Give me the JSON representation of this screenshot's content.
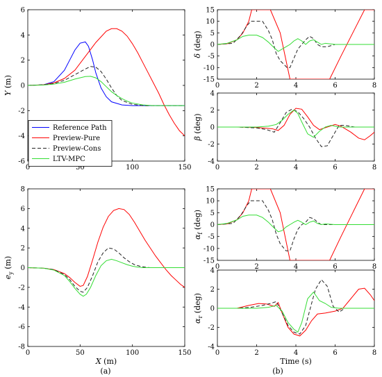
{
  "colors": {
    "reference": "#0000ff",
    "pure": "#ff0000",
    "cons": "#222222",
    "mpc": "#33dd33"
  },
  "captions": {
    "left": "(a)",
    "right": "(b)"
  },
  "chart_data": [
    {
      "id": "y",
      "type": "line",
      "xlabel": "",
      "ylabel": "Y (m)",
      "xlim": [
        0,
        150
      ],
      "ylim": [
        -6,
        6
      ],
      "xticks": [
        0,
        50,
        100,
        150
      ],
      "yticks": [
        -6,
        -4,
        -2,
        0,
        2,
        4,
        6
      ],
      "legend": {
        "placement": "bottom-left",
        "entries": [
          "Reference Path",
          "Preview-Pure",
          "Preview-Cons",
          "LTV-MPC"
        ]
      },
      "series": [
        {
          "name": "Reference Path",
          "key": "reference",
          "x": [
            0,
            15,
            25,
            35,
            40,
            45,
            50,
            55,
            58,
            62,
            65,
            70,
            75,
            80,
            90,
            100,
            110,
            120,
            130,
            140,
            150
          ],
          "y": [
            0,
            0.05,
            0.3,
            1.2,
            2,
            2.8,
            3.35,
            3.45,
            3.1,
            2.0,
            1.0,
            -0.2,
            -0.9,
            -1.3,
            -1.55,
            -1.6,
            -1.6,
            -1.6,
            -1.6,
            -1.6,
            -1.6
          ]
        },
        {
          "name": "Preview-Pure",
          "key": "pure",
          "x": [
            0,
            15,
            25,
            35,
            45,
            55,
            65,
            75,
            80,
            85,
            90,
            95,
            100,
            105,
            110,
            115,
            120,
            125,
            130,
            135,
            140,
            145,
            150
          ],
          "y": [
            0,
            0.05,
            0.2,
            0.55,
            1.2,
            2.3,
            3.4,
            4.3,
            4.5,
            4.5,
            4.3,
            3.9,
            3.3,
            2.6,
            1.8,
            1.0,
            0.2,
            -0.6,
            -1.5,
            -2.3,
            -3.0,
            -3.6,
            -4.0
          ]
        },
        {
          "name": "Preview-Cons",
          "key": "cons",
          "x": [
            0,
            15,
            25,
            35,
            45,
            55,
            60,
            65,
            70,
            75,
            80,
            85,
            90,
            100,
            110,
            120,
            130,
            140,
            150
          ],
          "y": [
            0,
            0.05,
            0.15,
            0.4,
            0.85,
            1.3,
            1.5,
            1.45,
            1.1,
            0.5,
            -0.2,
            -0.8,
            -1.2,
            -1.5,
            -1.6,
            -1.6,
            -1.6,
            -1.6,
            -1.6
          ]
        },
        {
          "name": "LTV-MPC",
          "key": "mpc",
          "x": [
            0,
            15,
            25,
            35,
            45,
            55,
            60,
            65,
            70,
            75,
            80,
            85,
            90,
            95,
            100,
            110,
            120,
            130,
            140,
            150
          ],
          "y": [
            0,
            0.03,
            0.1,
            0.25,
            0.5,
            0.7,
            0.72,
            0.6,
            0.3,
            -0.1,
            -0.5,
            -0.8,
            -1.05,
            -1.25,
            -1.4,
            -1.55,
            -1.6,
            -1.6,
            -1.6,
            -1.6
          ]
        }
      ]
    },
    {
      "id": "ey",
      "type": "line",
      "xlabel": "X (m)",
      "ylabel": "e_y (m)",
      "xlim": [
        0,
        150
      ],
      "ylim": [
        -8,
        8
      ],
      "xticks": [
        0,
        50,
        100,
        150
      ],
      "yticks": [
        -8,
        -6,
        -4,
        -2,
        0,
        2,
        4,
        6,
        8
      ],
      "series": [
        {
          "name": "Preview-Pure",
          "key": "pure",
          "x": [
            0,
            15,
            25,
            35,
            40,
            45,
            50,
            53,
            57,
            62,
            67,
            72,
            77,
            82,
            87,
            92,
            97,
            102,
            107,
            112,
            117,
            122,
            127,
            132,
            137,
            142,
            146,
            150
          ],
          "y": [
            0,
            -0.05,
            -0.2,
            -0.6,
            -1.0,
            -1.5,
            -1.9,
            -1.8,
            -0.9,
            0.8,
            2.6,
            4.1,
            5.2,
            5.8,
            6.0,
            5.9,
            5.4,
            4.6,
            3.7,
            2.8,
            2.0,
            1.2,
            0.5,
            -0.2,
            -0.8,
            -1.3,
            -1.7,
            -2.0
          ]
        },
        {
          "name": "Preview-Cons",
          "key": "cons",
          "x": [
            0,
            15,
            25,
            35,
            40,
            45,
            50,
            53,
            57,
            62,
            67,
            72,
            77,
            82,
            87,
            92,
            97,
            102,
            107,
            112,
            117,
            122,
            130,
            140,
            150
          ],
          "y": [
            0,
            -0.05,
            -0.2,
            -0.7,
            -1.2,
            -1.9,
            -2.4,
            -2.5,
            -2.0,
            -0.8,
            0.6,
            1.5,
            2.0,
            1.9,
            1.5,
            1.0,
            0.6,
            0.3,
            0.15,
            0.05,
            0,
            0,
            0,
            0,
            0
          ]
        },
        {
          "name": "LTV-MPC",
          "key": "mpc",
          "x": [
            0,
            15,
            25,
            35,
            40,
            45,
            50,
            53,
            56,
            60,
            65,
            70,
            75,
            80,
            85,
            90,
            95,
            100,
            105,
            110,
            120,
            130,
            140,
            150
          ],
          "y": [
            0,
            -0.05,
            -0.25,
            -0.8,
            -1.4,
            -2.1,
            -2.7,
            -2.9,
            -2.7,
            -2.0,
            -0.8,
            0.2,
            0.7,
            0.85,
            0.7,
            0.5,
            0.3,
            0.15,
            0.05,
            0,
            0,
            0,
            0,
            0
          ]
        }
      ]
    },
    {
      "id": "delta",
      "type": "line",
      "xlabel": "",
      "ylabel": "δ (deg)",
      "xlim": [
        0,
        8
      ],
      "ylim": [
        -15,
        15
      ],
      "xticks": [
        0,
        2,
        4,
        6,
        8
      ],
      "yticks": [
        -15,
        -10,
        -5,
        0,
        5,
        10,
        15
      ],
      "series": [
        {
          "name": "Preview-Pure",
          "key": "pure",
          "x": [
            0,
            0.5,
            1.0,
            1.3,
            1.6,
            1.75,
            2.2,
            2.7,
            3.2,
            3.7,
            3.72,
            5.7,
            5.72,
            6.3,
            6.9,
            7.5,
            8.0
          ],
          "y": [
            0,
            0.3,
            2,
            5,
            10,
            15,
            15,
            15,
            5,
            -15,
            -15,
            -15,
            -15,
            -5,
            5,
            15,
            15
          ]
        },
        {
          "name": "Preview-Cons",
          "key": "cons",
          "x": [
            0,
            0.8,
            1.2,
            1.5,
            1.7,
            2.3,
            2.6,
            2.8,
            3.0,
            3.2,
            3.55,
            3.7,
            3.9,
            4.1,
            4.3,
            4.5,
            4.7,
            4.9,
            5.1,
            5.3,
            5.6,
            6.0,
            6.5,
            8.0
          ],
          "y": [
            0,
            0.5,
            4,
            8,
            10,
            10,
            6,
            2,
            -4,
            -7,
            -10,
            -10,
            -6,
            -2,
            0,
            2,
            3.5,
            2.5,
            0,
            -1,
            -1,
            0,
            0,
            0
          ]
        },
        {
          "name": "LTV-MPC",
          "key": "mpc",
          "x": [
            0,
            0.5,
            1.0,
            1.3,
            1.6,
            2.0,
            2.3,
            2.6,
            2.9,
            3.1,
            3.3,
            3.5,
            3.7,
            3.9,
            4.1,
            4.3,
            4.5,
            4.7,
            4.9,
            5.1,
            5.3,
            5.5,
            6.0,
            6.5,
            8.0
          ],
          "y": [
            0,
            0.5,
            2,
            3.5,
            4,
            4,
            3,
            1,
            -1.5,
            -3,
            -2,
            -1,
            0,
            1.5,
            2.5,
            1.5,
            0,
            1.5,
            2,
            1,
            0,
            0.5,
            0,
            0,
            0
          ]
        }
      ]
    },
    {
      "id": "beta",
      "type": "line",
      "xlabel": "",
      "ylabel": "β (deg)",
      "xlim": [
        0,
        8
      ],
      "ylim": [
        -4,
        4
      ],
      "xticks": [
        0,
        2,
        4,
        6,
        8
      ],
      "yticks": [
        -4,
        -2,
        0,
        2,
        4
      ],
      "series": [
        {
          "name": "Preview-Pure",
          "key": "pure",
          "x": [
            0,
            1.0,
            2.0,
            2.8,
            3.1,
            3.4,
            3.7,
            4.0,
            4.3,
            4.6,
            4.9,
            5.2,
            5.6,
            6.0,
            6.3,
            6.8,
            7.2,
            7.5,
            7.8,
            8.0
          ],
          "y": [
            0,
            0,
            -0.05,
            -0.2,
            -0.4,
            0.2,
            1.5,
            2.2,
            2.1,
            1.2,
            0.2,
            -0.3,
            0,
            0.3,
            0.1,
            -0.6,
            -1.3,
            -1.5,
            -1.0,
            -0.6
          ]
        },
        {
          "name": "Preview-Cons",
          "key": "cons",
          "x": [
            0,
            1.0,
            2.0,
            2.5,
            2.9,
            3.2,
            3.5,
            3.8,
            4.1,
            4.4,
            4.7,
            5.0,
            5.3,
            5.6,
            5.9,
            6.2,
            6.5,
            7.0,
            8.0
          ],
          "y": [
            0,
            0,
            -0.1,
            -0.3,
            -0.6,
            0.5,
            1.7,
            2.1,
            1.8,
            1.0,
            0,
            -1.3,
            -2.3,
            -2.2,
            -1.0,
            0.2,
            0.2,
            0,
            0
          ]
        },
        {
          "name": "LTV-MPC",
          "key": "mpc",
          "x": [
            0,
            1.0,
            2.0,
            2.6,
            3.0,
            3.3,
            3.6,
            3.9,
            4.1,
            4.3,
            4.6,
            4.9,
            5.2,
            5.5,
            5.8,
            6.2,
            7.0,
            8.0
          ],
          "y": [
            0,
            0,
            0,
            0.1,
            0.3,
            0.8,
            1.5,
            2.0,
            1.6,
            0.6,
            -0.8,
            -1.2,
            -0.5,
            0,
            0.2,
            0,
            0,
            0
          ]
        }
      ]
    },
    {
      "id": "alphaf",
      "type": "line",
      "xlabel": "",
      "ylabel": "α_f (deg)",
      "xlim": [
        0,
        8
      ],
      "ylim": [
        -15,
        15
      ],
      "xticks": [
        0,
        2,
        4,
        6,
        8
      ],
      "yticks": [
        -15,
        -10,
        -5,
        0,
        5,
        10,
        15
      ],
      "series": [
        {
          "name": "Preview-Pure",
          "key": "pure",
          "x": [
            0,
            0.5,
            1.0,
            1.3,
            1.6,
            1.75,
            2.2,
            2.7,
            3.2,
            3.7,
            3.72,
            5.7,
            5.72,
            6.3,
            6.9,
            7.5,
            8.0
          ],
          "y": [
            0,
            0.3,
            2,
            5,
            10,
            15,
            15,
            15,
            5,
            -15,
            -15,
            -15,
            -15,
            -5,
            5,
            15,
            15
          ]
        },
        {
          "name": "Preview-Cons",
          "key": "cons",
          "x": [
            0,
            0.8,
            1.2,
            1.5,
            1.7,
            2.3,
            2.6,
            2.8,
            3.0,
            3.2,
            3.5,
            3.7,
            3.9,
            4.1,
            4.3,
            4.5,
            4.7,
            4.9,
            5.1,
            5.3,
            5.6,
            6.0,
            6.5,
            8.0
          ],
          "y": [
            0,
            0.5,
            4,
            8,
            10,
            10,
            6,
            2,
            -4,
            -8,
            -11,
            -11,
            -6,
            -2,
            0,
            1,
            3,
            2.5,
            1,
            0,
            0,
            0,
            0,
            0
          ]
        },
        {
          "name": "LTV-MPC",
          "key": "mpc",
          "x": [
            0,
            0.5,
            1.0,
            1.3,
            1.6,
            2.0,
            2.3,
            2.6,
            2.9,
            3.1,
            3.3,
            3.5,
            3.7,
            3.9,
            4.1,
            4.3,
            4.5,
            4.7,
            4.9,
            5.1,
            5.3,
            5.5,
            6.0,
            6.5,
            8.0
          ],
          "y": [
            0,
            0.5,
            2,
            3.5,
            4,
            4,
            3,
            1,
            -1.5,
            -3,
            -2.5,
            -1,
            0,
            1,
            1.8,
            1,
            0,
            1,
            1.5,
            0.5,
            0,
            0.3,
            0,
            0,
            0
          ]
        }
      ]
    },
    {
      "id": "alphar",
      "type": "line",
      "xlabel": "Time (s)",
      "ylabel": "α_r (deg)",
      "xlim": [
        0,
        8
      ],
      "ylim": [
        -4,
        4
      ],
      "xticks": [
        0,
        2,
        4,
        6,
        8
      ],
      "yticks": [
        -4,
        -2,
        0,
        2,
        4
      ],
      "series": [
        {
          "name": "Preview-Pure",
          "key": "pure",
          "x": [
            0,
            1.0,
            1.6,
            2.1,
            2.5,
            2.9,
            3.1,
            3.3,
            3.6,
            3.9,
            4.2,
            4.5,
            4.8,
            5.1,
            5.5,
            6.0,
            6.4,
            6.8,
            7.2,
            7.5,
            7.8,
            8.0
          ],
          "y": [
            0,
            0,
            0.3,
            0.5,
            0.45,
            0.2,
            0.6,
            -0.5,
            -2.0,
            -2.7,
            -2.9,
            -2.3,
            -1.3,
            -0.6,
            -0.5,
            -0.3,
            0,
            1.0,
            2.0,
            2.1,
            1.4,
            0.8
          ]
        },
        {
          "name": "Preview-Cons",
          "key": "cons",
          "x": [
            0,
            1.0,
            1.7,
            2.3,
            2.7,
            3.0,
            3.3,
            3.6,
            3.9,
            4.2,
            4.5,
            4.8,
            5.0,
            5.3,
            5.6,
            5.9,
            6.2,
            6.5,
            7.0,
            8.0
          ],
          "y": [
            0,
            0,
            0.1,
            0.3,
            0.5,
            0.7,
            -0.5,
            -1.8,
            -2.5,
            -2.7,
            -1.8,
            0.5,
            2.0,
            3.0,
            2.3,
            0.2,
            -0.4,
            0,
            0,
            0
          ]
        },
        {
          "name": "LTV-MPC",
          "key": "mpc",
          "x": [
            0,
            1.0,
            2.0,
            2.6,
            3.0,
            3.3,
            3.6,
            3.9,
            4.1,
            4.3,
            4.6,
            4.9,
            5.2,
            5.5,
            5.8,
            6.2,
            7.0,
            8.0
          ],
          "y": [
            0,
            0,
            0,
            0.1,
            0.3,
            -0.3,
            -1.5,
            -2.2,
            -2.5,
            -1.5,
            1.0,
            1.7,
            0.8,
            0.5,
            0.1,
            0,
            0,
            0
          ]
        }
      ]
    }
  ]
}
